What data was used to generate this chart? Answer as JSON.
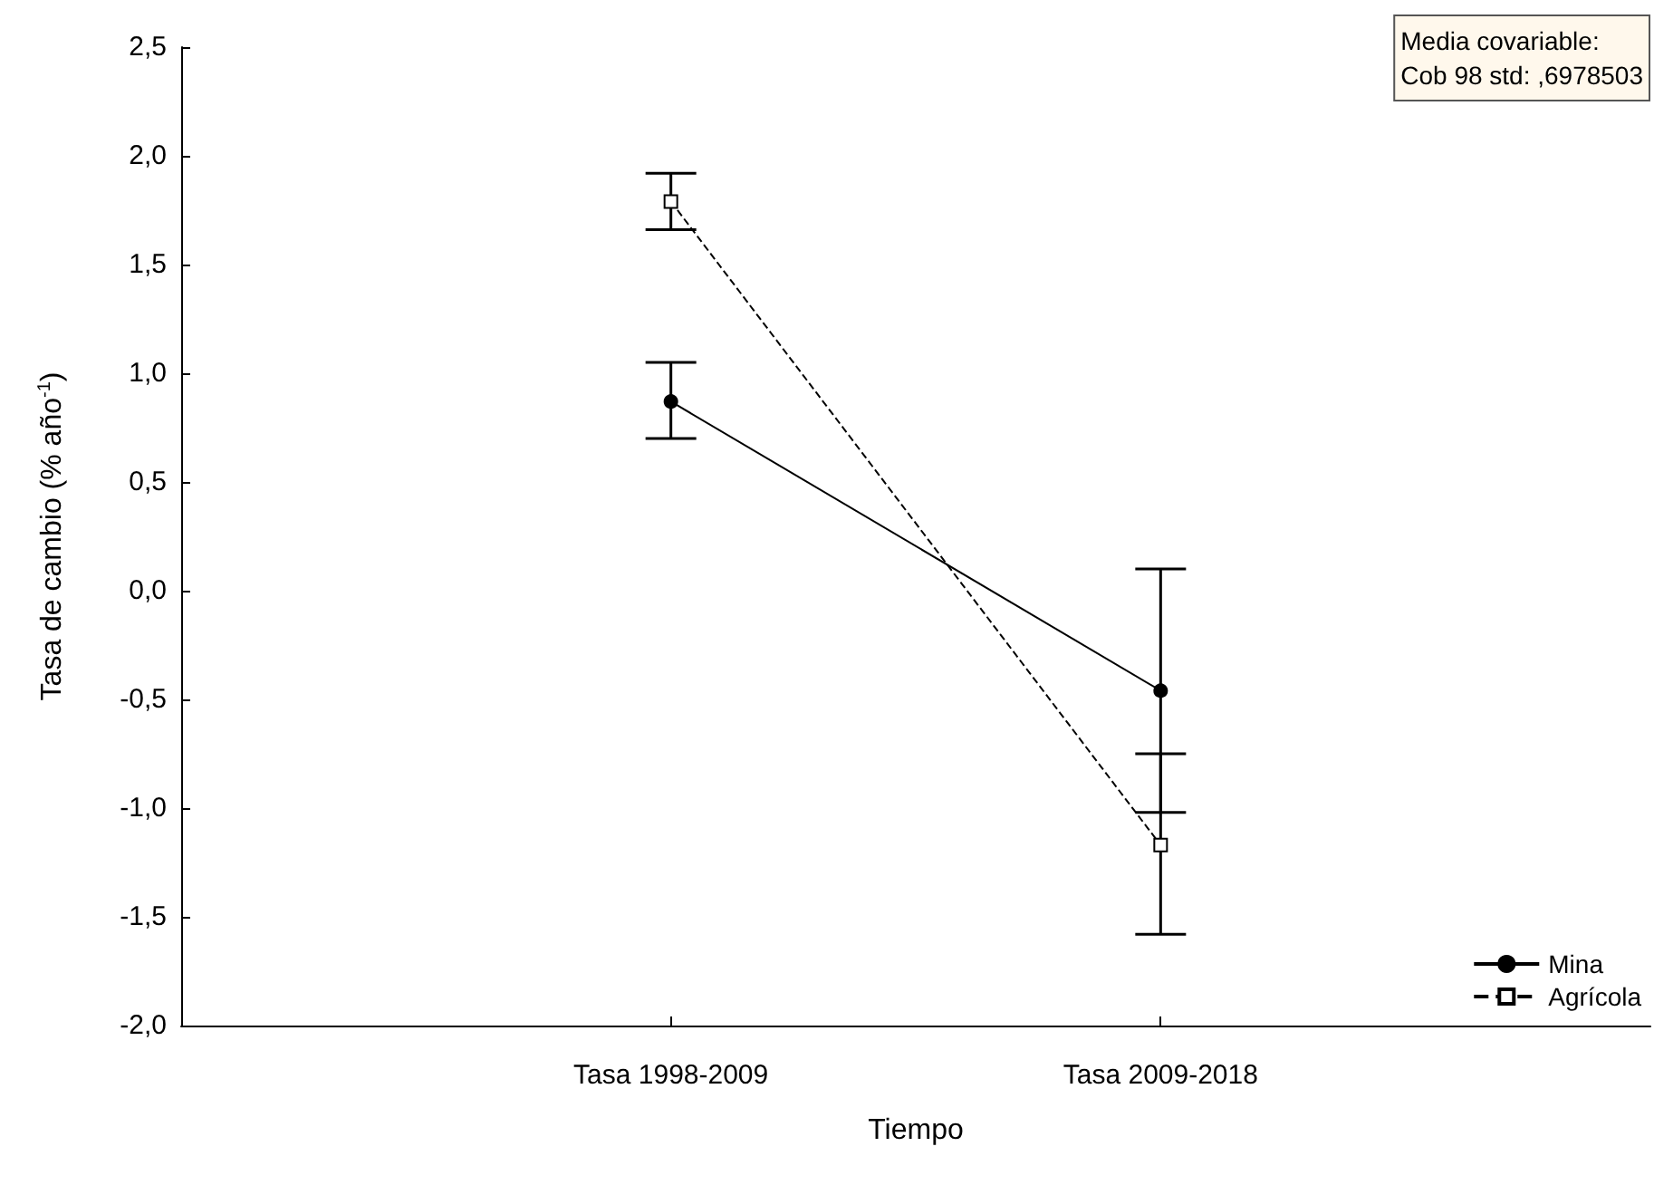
{
  "chart_data": {
    "type": "line",
    "xlabel": "Tiempo",
    "ylabel": "Tasa de cambio (% año$^{-1}$)",
    "categories": [
      "Tasa 1998-2009",
      "Tasa 2009-2018"
    ],
    "series": [
      {
        "name": "Mina",
        "color": "#000000",
        "values": [
          0.87,
          -0.46
        ],
        "errors": [
          [
            0.7,
            1.05
          ],
          [
            -1.02,
            0.1
          ]
        ],
        "marker": "circle",
        "line_style": "solid"
      },
      {
        "name": "Agrícola",
        "color": "#000000",
        "values": [
          1.79,
          -1.17
        ],
        "errors": [
          [
            1.66,
            1.92
          ],
          [
            -1.58,
            -0.75
          ]
        ],
        "marker": "square",
        "line_style": "dashed"
      }
    ],
    "ylim": [
      -2.0,
      2.5
    ],
    "yticks": [
      {
        "value": -2.0,
        "label": "-2,0"
      },
      {
        "value": -1.5,
        "label": "-1,5"
      },
      {
        "value": -1.0,
        "label": "-1,0"
      },
      {
        "value": -0.5,
        "label": "-0,5"
      },
      {
        "value": 0.0,
        "label": "0,0"
      },
      {
        "value": 0.5,
        "label": "0,5"
      },
      {
        "value": 1.0,
        "label": "1,0"
      },
      {
        "value": 1.5,
        "label": "1,5"
      },
      {
        "value": 2.0,
        "label": "2,0"
      },
      {
        "value": 2.5,
        "label": "2,5"
      }
    ],
    "annotations": [
      "Media covariable:\nCob 98 std: ,6978503"
    ],
    "legend": "bottom right",
    "grid": false
  }
}
